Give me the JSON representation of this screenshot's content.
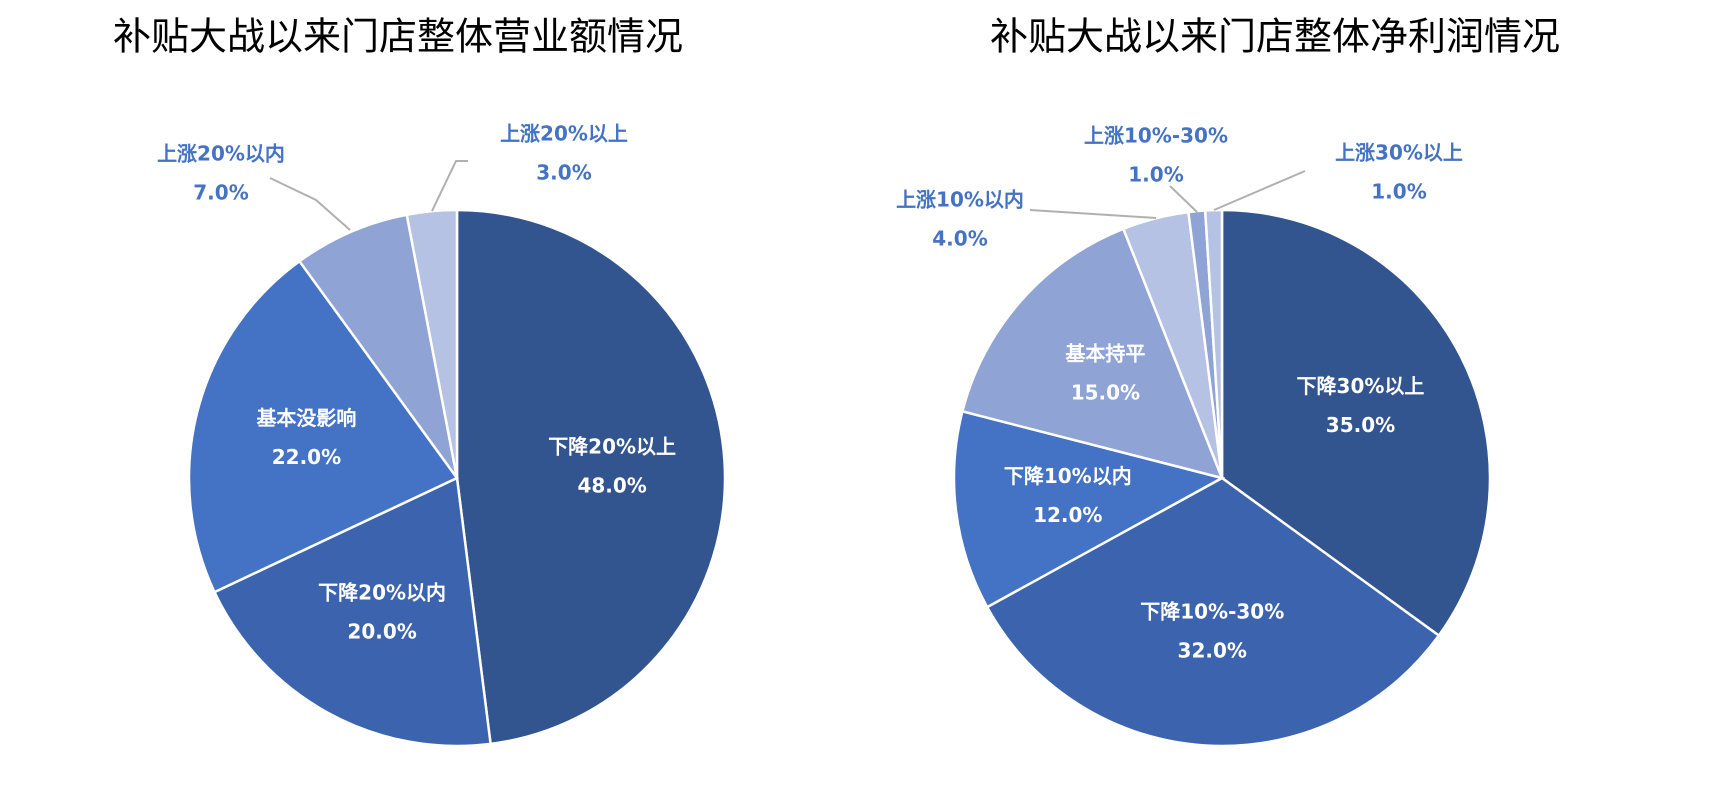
{
  "chart_data": [
    {
      "type": "pie",
      "title": "补贴大战以来门店整体营业额情况",
      "categories": [
        "下降20%以上",
        "下降20%以内",
        "基本没影响",
        "上涨20%以内",
        "上涨20%以上"
      ],
      "values": [
        48,
        20,
        22,
        7,
        3
      ],
      "value_labels": [
        "48.0%",
        "20.0%",
        "22.0%",
        "7.0%",
        "3.0%"
      ],
      "colors": [
        "#33558f",
        "#3c64ae",
        "#4472c4",
        "#8fa3d4",
        "#b5c2e3"
      ]
    },
    {
      "type": "pie",
      "title": "补贴大战以来门店整体净利润情况",
      "categories": [
        "下降30%以上",
        "下降10%-30%",
        "下降10%以内",
        "基本持平",
        "上涨10%以内",
        "上涨10%-30%",
        "上涨30%以上"
      ],
      "values": [
        35,
        32,
        12,
        15,
        4,
        1,
        1
      ],
      "value_labels": [
        "35.0%",
        "32.0%",
        "12.0%",
        "15.0%",
        "4.0%",
        "1.0%",
        "1.0%"
      ],
      "colors": [
        "#33558f",
        "#3c64ae",
        "#4472c4",
        "#8fa3d4",
        "#b5c2e3",
        "#8fa3d4",
        "#b5c2e3"
      ]
    }
  ]
}
